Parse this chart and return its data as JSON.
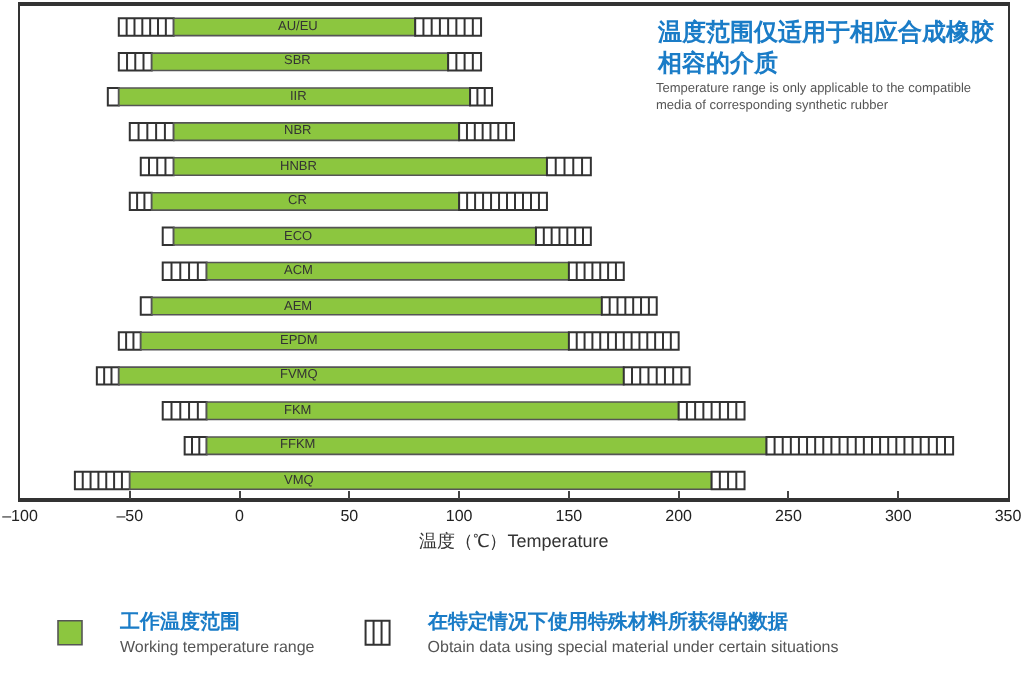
{
  "chart_data": {
    "type": "bar",
    "orientation": "horizontal",
    "title": "温度范围仅适用于相应合成橡胶相容的介质",
    "subtitle": "Temperature range is only applicable to the compatible\nmedia of corresponding synthetic rubber",
    "xlabel": "温度（℃）Temperature",
    "categories": [
      "AU/EU",
      "SBR",
      "IIR",
      "NBR",
      "HNBR",
      "CR",
      "ECO",
      "ACM",
      "AEM",
      "EPDM",
      "FVMQ",
      "FKM",
      "FFKM",
      "VMQ"
    ],
    "series": [
      {
        "name": "在特定情况下使用特殊材料所获得的数据\nObtain data using special material under certain situations",
        "color": "#ffffff",
        "base": [
          -55,
          -55,
          -60,
          -50,
          -45,
          -50,
          -35,
          -35,
          -45,
          -55,
          -65,
          -35,
          -25,
          -75
        ],
        "values": [
          25,
          15,
          5,
          20,
          15,
          10,
          5,
          20,
          5,
          10,
          10,
          20,
          10,
          25
        ]
      },
      {
        "name": "工作温度范围\nWorking temperature range",
        "color": "#8cc63f",
        "base": [
          -30,
          -40,
          -55,
          -30,
          -30,
          -40,
          -30,
          -15,
          -40,
          -45,
          -55,
          -15,
          -15,
          -50
        ],
        "values": [
          110,
          135,
          160,
          130,
          170,
          140,
          165,
          165,
          205,
          195,
          230,
          215,
          255,
          265
        ]
      },
      {
        "color": "#ffffff",
        "base": [
          80,
          95,
          105,
          100,
          140,
          100,
          135,
          150,
          165,
          150,
          175,
          200,
          240,
          215
        ],
        "values": [
          30,
          15,
          10,
          25,
          20,
          40,
          25,
          25,
          25,
          50,
          30,
          30,
          85,
          15
        ]
      }
    ],
    "xlim": [
      -100,
      350
    ],
    "xticks": [
      {
        "value": -100,
        "label": "–100"
      },
      {
        "value": -50,
        "label": "–50"
      },
      0,
      50,
      100,
      150,
      200,
      250,
      300,
      350
    ],
    "grid": false,
    "legend": "bottom"
  }
}
